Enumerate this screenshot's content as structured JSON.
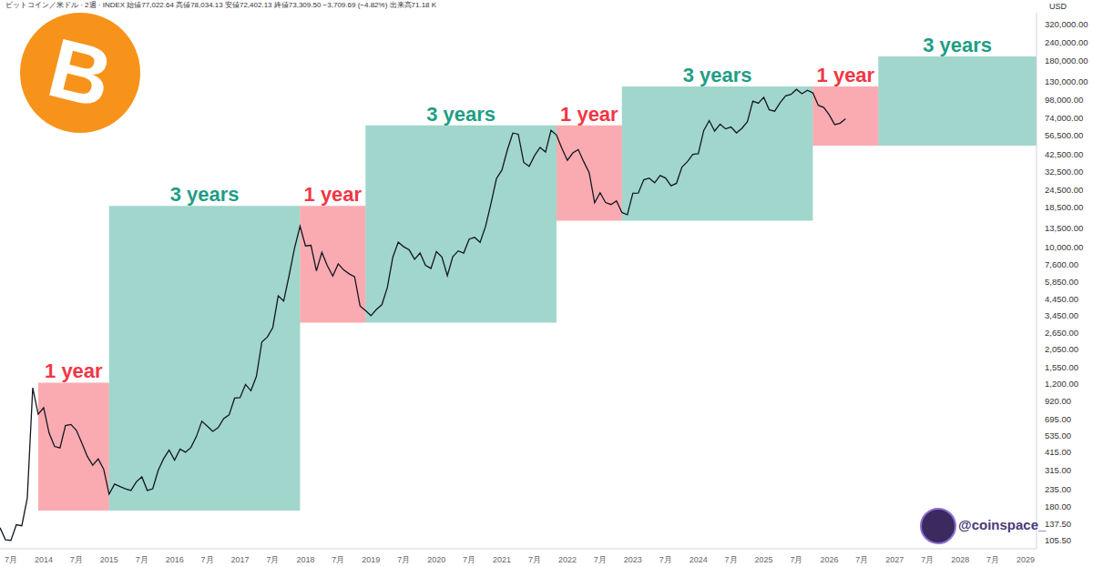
{
  "chart_data": {
    "type": "line",
    "title": "ビットコイン／米ドル · 2週 · INDEX 始値77,022.64 高値78,034.13 安値72,402.13 終値73,309.50 −3,709.69 (−4.82%) 出来高71.18 K",
    "y_label": "USD",
    "watermark": "@coinspace_",
    "logo": "B",
    "color": "#131722",
    "log": "y",
    "grid": false,
    "x": [
      "2013-05",
      "2013-06",
      "2013-07",
      "2013-08",
      "2013-09",
      "2013-10",
      "2013-11",
      "2013-12",
      "2014-01",
      "2014-02",
      "2014-03",
      "2014-04",
      "2014-05",
      "2014-06",
      "2014-07",
      "2014-08",
      "2014-09",
      "2014-10",
      "2014-11",
      "2014-12",
      "2015-01",
      "2015-02",
      "2015-03",
      "2015-04",
      "2015-05",
      "2015-06",
      "2015-07",
      "2015-08",
      "2015-09",
      "2015-10",
      "2015-11",
      "2015-12",
      "2016-01",
      "2016-02",
      "2016-03",
      "2016-04",
      "2016-05",
      "2016-06",
      "2016-07",
      "2016-08",
      "2016-09",
      "2016-10",
      "2016-11",
      "2016-12",
      "2017-01",
      "2017-02",
      "2017-03",
      "2017-04",
      "2017-05",
      "2017-06",
      "2017-07",
      "2017-08",
      "2017-09",
      "2017-10",
      "2017-11",
      "2017-12",
      "2018-01",
      "2018-02",
      "2018-03",
      "2018-04",
      "2018-05",
      "2018-06",
      "2018-07",
      "2018-08",
      "2018-09",
      "2018-10",
      "2018-11",
      "2018-12",
      "2019-01",
      "2019-02",
      "2019-03",
      "2019-04",
      "2019-05",
      "2019-06",
      "2019-07",
      "2019-08",
      "2019-09",
      "2019-10",
      "2019-11",
      "2019-12",
      "2020-01",
      "2020-02",
      "2020-03",
      "2020-04",
      "2020-05",
      "2020-06",
      "2020-07",
      "2020-08",
      "2020-09",
      "2020-10",
      "2020-11",
      "2020-12",
      "2021-01",
      "2021-02",
      "2021-03",
      "2021-04",
      "2021-05",
      "2021-06",
      "2021-07",
      "2021-08",
      "2021-09",
      "2021-10",
      "2021-11",
      "2021-12",
      "2022-01",
      "2022-02",
      "2022-03",
      "2022-04",
      "2022-05",
      "2022-06",
      "2022-07",
      "2022-08",
      "2022-09",
      "2022-10",
      "2022-11",
      "2022-12",
      "2023-01",
      "2023-02",
      "2023-03",
      "2023-04",
      "2023-05",
      "2023-06",
      "2023-07",
      "2023-08",
      "2023-09",
      "2023-10",
      "2023-11",
      "2023-12",
      "2024-01",
      "2024-02",
      "2024-03",
      "2024-04",
      "2024-05",
      "2024-06",
      "2024-07",
      "2024-08",
      "2024-09",
      "2024-10",
      "2024-11",
      "2024-12",
      "2025-01",
      "2025-02",
      "2025-03",
      "2025-04",
      "2025-05",
      "2025-06",
      "2025-07",
      "2025-08",
      "2025-09",
      "2025-10",
      "2025-11",
      "2025-12",
      "2026-01",
      "2026-02",
      "2026-03",
      "2026-04"
    ],
    "values": [
      129,
      107,
      106,
      135,
      133,
      204,
      1130,
      750,
      830,
      560,
      455,
      445,
      630,
      640,
      585,
      480,
      390,
      340,
      375,
      320,
      217,
      254,
      244,
      236,
      230,
      263,
      284,
      230,
      236,
      314,
      377,
      430,
      368,
      437,
      416,
      448,
      531,
      673,
      624,
      575,
      609,
      700,
      742,
      963,
      970,
      1190,
      1080,
      1350,
      2300,
      2480,
      2875,
      4700,
      4340,
      6470,
      9900,
      13850,
      10200,
      10300,
      6930,
      9240,
      7500,
      6400,
      7730,
      7030,
      6625,
      6320,
      4020,
      3740,
      3460,
      3810,
      4100,
      5350,
      8550,
      10820,
      10080,
      9600,
      8300,
      9150,
      7550,
      7200,
      9350,
      8600,
      6440,
      8630,
      9450,
      9140,
      11350,
      11650,
      10780,
      13800,
      19700,
      28990,
      33100,
      45240,
      58800,
      57750,
      37300,
      35040,
      41460,
      47100,
      43800,
      61300,
      57000,
      46300,
      38500,
      43200,
      45500,
      37700,
      31800,
      19900,
      23300,
      20000,
      19400,
      20500,
      17150,
      16550,
      23100,
      23150,
      28450,
      29250,
      27200,
      30450,
      29250,
      25950,
      26950,
      34650,
      37700,
      42250,
      42600,
      61150,
      71300,
      60650,
      67500,
      62700,
      64600,
      58950,
      63300,
      70200,
      96400,
      93400,
      102400,
      84350,
      82550,
      94200,
      104600,
      107100,
      115800,
      108200,
      114000,
      109600,
      90400,
      87500,
      78000,
      67000,
      68500,
      73310
    ],
    "xlim": [
      "2013-05",
      "2029-03"
    ],
    "xticks": [
      {
        "value": "2013-07",
        "label": "7月"
      },
      {
        "value": "2014-01",
        "label": "2014"
      },
      {
        "value": "2014-07",
        "label": "7月"
      },
      {
        "value": "2015-01",
        "label": "2015"
      },
      {
        "value": "2015-07",
        "label": "7月"
      },
      {
        "value": "2016-01",
        "label": "2016"
      },
      {
        "value": "2016-07",
        "label": "7月"
      },
      {
        "value": "2017-01",
        "label": "2017"
      },
      {
        "value": "2017-07",
        "label": "7月"
      },
      {
        "value": "2018-01",
        "label": "2018"
      },
      {
        "value": "2018-07",
        "label": "7月"
      },
      {
        "value": "2019-01",
        "label": "2019"
      },
      {
        "value": "2019-07",
        "label": "7月"
      },
      {
        "value": "2020-01",
        "label": "2020"
      },
      {
        "value": "2020-07",
        "label": "7月"
      },
      {
        "value": "2021-01",
        "label": "2021"
      },
      {
        "value": "2021-07",
        "label": "7月"
      },
      {
        "value": "2022-01",
        "label": "2022"
      },
      {
        "value": "2022-07",
        "label": "7月"
      },
      {
        "value": "2023-01",
        "label": "2023"
      },
      {
        "value": "2023-07",
        "label": "7月"
      },
      {
        "value": "2024-01",
        "label": "2024"
      },
      {
        "value": "2024-07",
        "label": "7月"
      },
      {
        "value": "2025-01",
        "label": "2025"
      },
      {
        "value": "2025-07",
        "label": "7月"
      },
      {
        "value": "2026-01",
        "label": "2026"
      },
      {
        "value": "2026-07",
        "label": "7月"
      },
      {
        "value": "2027-01",
        "label": "2027"
      },
      {
        "value": "2027-07",
        "label": "7月"
      },
      {
        "value": "2028-01",
        "label": "2028"
      },
      {
        "value": "2028-07",
        "label": "7月"
      },
      {
        "value": "2029-01",
        "label": "2029"
      }
    ],
    "ylim": [
      93,
      380000
    ],
    "yticks": [
      {
        "value": 105.5,
        "label": "105.50"
      },
      {
        "value": 137.5,
        "label": "137.50"
      },
      {
        "value": 180,
        "label": "180.00"
      },
      {
        "value": 235,
        "label": "235.00"
      },
      {
        "value": 315,
        "label": "315.00"
      },
      {
        "value": 415,
        "label": "415.00"
      },
      {
        "value": 535,
        "label": "535.00"
      },
      {
        "value": 695,
        "label": "695.00"
      },
      {
        "value": 920,
        "label": "920.00"
      },
      {
        "value": 1200,
        "label": "1,200.00"
      },
      {
        "value": 1550,
        "label": "1,550.00"
      },
      {
        "value": 2050,
        "label": "2,050.00"
      },
      {
        "value": 2650,
        "label": "2,650.00"
      },
      {
        "value": 3450,
        "label": "3,450.00"
      },
      {
        "value": 4450,
        "label": "4,450.00"
      },
      {
        "value": 5850,
        "label": "5,850.00"
      },
      {
        "value": 7600,
        "label": "7,600.00"
      },
      {
        "value": 10000,
        "label": "10,000.00"
      },
      {
        "value": 13500,
        "label": "13,500.00"
      },
      {
        "value": 18500,
        "label": "18,500.00"
      },
      {
        "value": 24500,
        "label": "24,500.00"
      },
      {
        "value": 32500,
        "label": "32,500.00"
      },
      {
        "value": 42500,
        "label": "42,500.00"
      },
      {
        "value": 56500,
        "label": "56,500.00"
      },
      {
        "value": 74000,
        "label": "74,000.00"
      },
      {
        "value": 98000,
        "label": "98,000.00"
      },
      {
        "value": 130000,
        "label": "130,000.00"
      },
      {
        "value": 180000,
        "label": "180,000.00"
      },
      {
        "value": 240000,
        "label": "240,000.00"
      },
      {
        "value": 320000,
        "label": "320,000.00"
      }
    ],
    "annotations": [
      {
        "label": "1 year",
        "x": [
          "2013-12",
          "2015-01"
        ],
        "y": [
          168,
          1225
        ],
        "color": "#f23645"
      },
      {
        "label": "3 years",
        "x": [
          "2015-01",
          "2017-12"
        ],
        "y": [
          168,
          19000
        ],
        "color": "#1e9e85"
      },
      {
        "label": "1 year",
        "x": [
          "2017-12",
          "2018-12"
        ],
        "y": [
          3110,
          19000
        ],
        "color": "#f23645"
      },
      {
        "label": "3 years",
        "x": [
          "2018-12",
          "2021-11"
        ],
        "y": [
          3110,
          66200
        ],
        "color": "#1e9e85"
      },
      {
        "label": "1 year",
        "x": [
          "2021-11",
          "2022-11"
        ],
        "y": [
          15070,
          66200
        ],
        "color": "#f23645"
      },
      {
        "label": "3 years",
        "x": [
          "2022-11",
          "2025-10"
        ],
        "y": [
          15070,
          121000
        ],
        "color": "#1e9e85"
      },
      {
        "label": "1 year",
        "x": [
          "2025-10",
          "2026-10"
        ],
        "y": [
          48300,
          121000
        ],
        "color": "#f23645"
      },
      {
        "label": "3 years",
        "x": [
          "2026-10",
          "2029-03"
        ],
        "y": [
          48300,
          192800
        ],
        "color": "#1e9e85"
      }
    ]
  }
}
